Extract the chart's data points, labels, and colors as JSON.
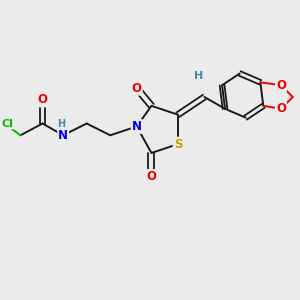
{
  "background_color": "#ebebeb",
  "bond_color": "#1a1a1a",
  "atom_colors": {
    "N": "#0000ee",
    "O": "#ee0000",
    "S": "#bbaa00",
    "Cl": "#00bb00",
    "H": "#4488aa",
    "C": "#1a1a1a"
  }
}
